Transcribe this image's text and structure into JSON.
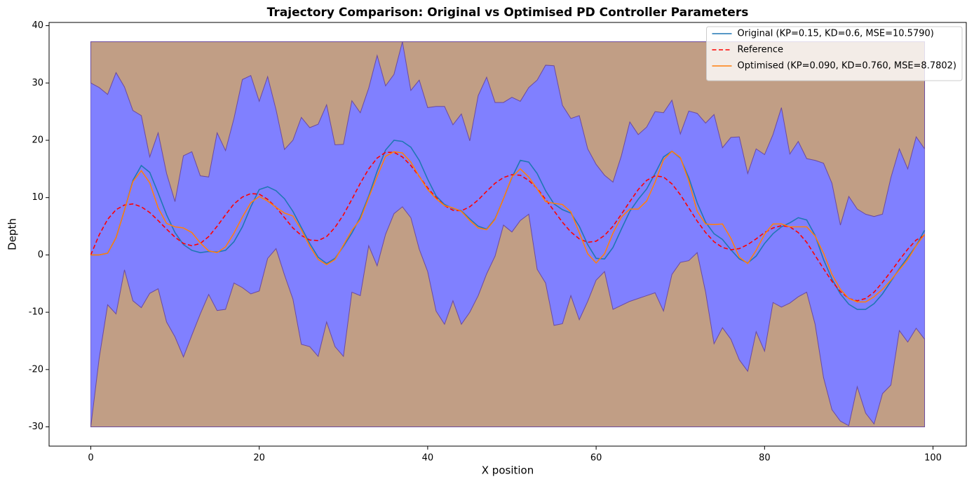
{
  "chart_data": {
    "type": "line",
    "title": "Trajectory Comparison: Original vs Optimised PD Controller Parameters",
    "xlabel": "X position",
    "ylabel": "Depth",
    "xlim": [
      -4.95,
      103.95
    ],
    "ylim": [
      -33.36,
      40.56
    ],
    "xticks": [
      0,
      20,
      40,
      60,
      80,
      100
    ],
    "yticks": [
      -30,
      -20,
      -10,
      0,
      10,
      20,
      30,
      40
    ],
    "grid": false,
    "legend": "upper right",
    "x": [
      0,
      1,
      2,
      3,
      4,
      5,
      6,
      7,
      8,
      9,
      10,
      11,
      12,
      13,
      14,
      15,
      16,
      17,
      18,
      19,
      20,
      21,
      22,
      23,
      24,
      25,
      26,
      27,
      28,
      29,
      30,
      31,
      32,
      33,
      34,
      35,
      36,
      37,
      38,
      39,
      40,
      41,
      42,
      43,
      44,
      45,
      46,
      47,
      48,
      49,
      50,
      51,
      52,
      53,
      54,
      55,
      56,
      57,
      58,
      59,
      60,
      61,
      62,
      63,
      64,
      65,
      66,
      67,
      68,
      69,
      70,
      71,
      72,
      73,
      74,
      75,
      76,
      77,
      78,
      79,
      80,
      81,
      82,
      83,
      84,
      85,
      86,
      87,
      88,
      89,
      90,
      91,
      92,
      93,
      94,
      95,
      96,
      97,
      98,
      99
    ],
    "cave": {
      "ceiling": 37.2,
      "floor": -30,
      "wall_fill": "#c19e85",
      "fill": "#8080ff",
      "edge": "#6b4a9e",
      "upper": [
        30,
        29.2,
        28,
        31.8,
        29.3,
        25.2,
        24.3,
        17.1,
        21.3,
        14.2,
        9.3,
        17.3,
        18,
        13.8,
        13.6,
        21.3,
        18.2,
        23.8,
        30.6,
        31.3,
        26.8,
        31.1,
        25.3,
        18.4,
        20,
        24,
        22.2,
        22.8,
        26.2,
        19.2,
        19.3,
        26.9,
        24.8,
        29.1,
        34.8,
        29.5,
        31.5,
        37.2,
        28.7,
        30.5,
        25.7,
        25.9,
        25.9,
        22.7,
        24.6,
        19.9,
        27.8,
        31,
        26.6,
        26.6,
        27.5,
        26.8,
        29.2,
        30.5,
        33.1,
        33,
        26.1,
        23.8,
        24.3,
        18.5,
        15.8,
        13.9,
        12.7,
        17.3,
        23.2,
        21,
        22.3,
        25,
        24.8,
        27,
        21.1,
        25.1,
        24.7,
        23,
        24.5,
        18.7,
        20.5,
        20.6,
        14.2,
        18.5,
        17.5,
        21,
        25.7,
        17.6,
        19.8,
        16.8,
        16.5,
        16,
        12.5,
        5.2,
        10.2,
        8,
        7.1,
        6.7,
        7.1,
        13.5,
        18.5,
        15,
        20.6,
        18.5
      ],
      "lower": [
        -30,
        -18,
        -8.7,
        -10.3,
        -2.6,
        -8,
        -9.2,
        -6.7,
        -5.9,
        -11.7,
        -14.3,
        -17.8,
        -14,
        -10.3,
        -6.9,
        -9.7,
        -9.5,
        -4.9,
        -5.7,
        -6.8,
        -6.3,
        -0.6,
        1.1,
        -3.5,
        -7.7,
        -15.6,
        -16,
        -17.7,
        -11.7,
        -16,
        -17.7,
        -6.5,
        -7.1,
        1.6,
        -1.9,
        3.6,
        7.2,
        8.4,
        6.5,
        1,
        -2.9,
        -9.8,
        -12.1,
        -8,
        -12.1,
        -10,
        -7.1,
        -3.3,
        -0.2,
        5.2,
        4,
        6,
        7.1,
        -2.5,
        -4.9,
        -12.3,
        -12,
        -7.1,
        -11.3,
        -8.1,
        -4.4,
        -2.9,
        -9.5,
        -8.8,
        -8.1,
        -7.6,
        -7.1,
        -6.6,
        -9.8,
        -3.4,
        -1.3,
        -1,
        0.4,
        -6.5,
        -15.5,
        -12.7,
        -14.7,
        -18.3,
        -20.3,
        -13.4,
        -16.8,
        -8.3,
        -9.1,
        -8.4,
        -7.3,
        -6.5,
        -12.1,
        -21.4,
        -27,
        -29,
        -29.8,
        -23,
        -27.6,
        -29.5,
        -24.2,
        -22.7,
        -13.2,
        -15.2,
        -12.8,
        -14.7
      ]
    },
    "series": [
      {
        "name": "Original (KP=0.15, KD=0.6, MSE=10.5790)",
        "color": "#1f77b4",
        "style": "solid",
        "values": [
          0,
          0,
          0.3,
          3,
          7.8,
          13,
          15.6,
          14.4,
          10.8,
          7,
          3.9,
          1.8,
          0.8,
          0.4,
          0.6,
          0.5,
          0.8,
          2.3,
          4.9,
          8.4,
          11.4,
          11.9,
          11.2,
          9.8,
          7.6,
          4.8,
          2,
          -0.4,
          -1.5,
          -0.6,
          1.5,
          3.8,
          6.6,
          10.3,
          14.6,
          18.3,
          20,
          19.8,
          18.8,
          16.5,
          13.2,
          10.3,
          8.8,
          8.1,
          7.7,
          6.3,
          5,
          4.5,
          6.3,
          9.8,
          13.5,
          16.5,
          16.2,
          14.2,
          11.2,
          8.9,
          7.9,
          7.3,
          5,
          1.8,
          -0.6,
          -0.7,
          1.3,
          4.5,
          7.6,
          9.7,
          11.5,
          14.2,
          17.1,
          18.1,
          16.9,
          13.5,
          9.1,
          5.7,
          3.7,
          2.7,
          0.9,
          -0.7,
          -1.4,
          -0.2,
          2,
          3.7,
          4.9,
          5.6,
          6.5,
          6.1,
          3.4,
          -0.8,
          -4.2,
          -6.8,
          -8.6,
          -9.5,
          -9.5,
          -8.5,
          -6.8,
          -4.6,
          -2.4,
          -0.4,
          1.6,
          4.3
        ]
      },
      {
        "name": "Reference",
        "color": "#ff0000",
        "style": "dashed",
        "values": [
          0,
          3.5,
          6.2,
          7.9,
          8.7,
          8.9,
          8.4,
          7.4,
          6,
          4.5,
          3.1,
          2,
          1.6,
          2,
          3.2,
          5,
          7,
          8.9,
          10.1,
          10.7,
          10.6,
          9.7,
          8.3,
          6.5,
          4.7,
          3.4,
          2.6,
          2.5,
          3.2,
          4.8,
          7,
          9.7,
          12.5,
          15,
          16.9,
          17.9,
          17.9,
          17.1,
          15.6,
          13.7,
          11.7,
          10,
          8.6,
          7.8,
          7.7,
          8.4,
          9.6,
          11.1,
          12.5,
          13.5,
          14,
          13.9,
          13,
          11.6,
          9.7,
          7.7,
          5.7,
          4,
          2.8,
          2.2,
          2.4,
          3.4,
          5,
          7.1,
          9.3,
          11.4,
          13,
          13.8,
          13.6,
          12.4,
          10.5,
          8.2,
          5.9,
          3.9,
          2.3,
          1.3,
          0.9,
          1.1,
          1.8,
          2.8,
          3.9,
          4.7,
          5.1,
          4.9,
          3.9,
          2.2,
          -0.1,
          -2.4,
          -4.6,
          -6.4,
          -7.6,
          -8,
          -7.6,
          -6.5,
          -4.8,
          -2.9,
          -0.9,
          1,
          2.6,
          3.4
        ]
      },
      {
        "name": "Optimised (KP=0.090, KD=0.760, MSE=8.7802)",
        "color": "#ff7f0e",
        "style": "solid",
        "values": [
          0,
          0,
          0.3,
          3,
          7.8,
          12.8,
          14.7,
          12.6,
          8.2,
          5.5,
          4.9,
          4.7,
          3.9,
          2.1,
          0.7,
          0.4,
          1.4,
          3.8,
          6.6,
          9.1,
          10.2,
          9.4,
          8.3,
          7.3,
          6.8,
          4.4,
          1.5,
          -0.8,
          -1.7,
          -0.8,
          1.7,
          4.3,
          6.2,
          10,
          13.7,
          17.2,
          18,
          17.8,
          16.2,
          13.7,
          11.4,
          9.8,
          8.6,
          8.2,
          7.6,
          6,
          4.7,
          4.4,
          6.2,
          9.8,
          13.6,
          15,
          13.6,
          11.5,
          9.3,
          9,
          8.8,
          7.5,
          3.9,
          0.2,
          -1.4,
          0.2,
          3.8,
          6.6,
          8,
          8,
          9.4,
          12.7,
          16.6,
          18.1,
          17,
          12.9,
          7.6,
          5.4,
          5.3,
          5.4,
          2.9,
          -0.4,
          -1.5,
          0.8,
          3.6,
          5.4,
          5.4,
          4.9,
          4.9,
          4.9,
          3.3,
          0.3,
          -3.4,
          -6,
          -7.6,
          -8.2,
          -8.2,
          -7.3,
          -6,
          -4.4,
          -2.6,
          -0.8,
          1.6,
          3.6
        ]
      }
    ]
  }
}
